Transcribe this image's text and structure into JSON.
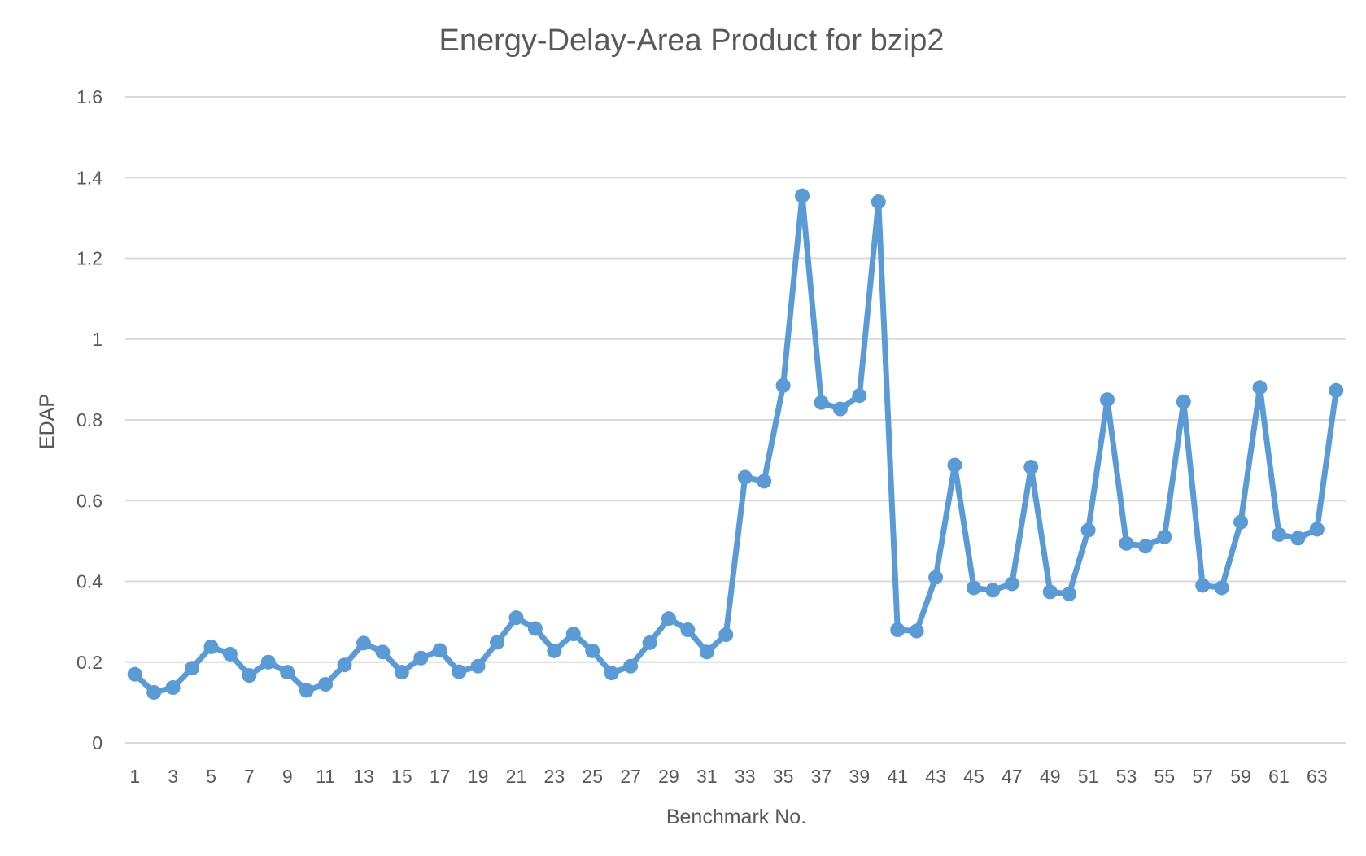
{
  "chart_data": {
    "type": "line",
    "title": "Energy-Delay-Area Product for bzip2",
    "xlabel": "Benchmark No.",
    "ylabel": "EDAP",
    "ylim": [
      0,
      1.6
    ],
    "y_ticks": [
      "0",
      "0.2",
      "0.4",
      "0.6",
      "0.8",
      "1",
      "1.2",
      "1.4",
      "1.6"
    ],
    "x_tick_labels": [
      "1",
      "3",
      "5",
      "7",
      "9",
      "11",
      "13",
      "15",
      "17",
      "19",
      "21",
      "23",
      "25",
      "27",
      "29",
      "31",
      "33",
      "35",
      "37",
      "39",
      "41",
      "43",
      "45",
      "47",
      "49",
      "51",
      "53",
      "55",
      "57",
      "59",
      "61",
      "63"
    ],
    "grid": true,
    "legend": "none",
    "color": "#5b9bd5",
    "series": [
      {
        "values": [
          0.17,
          0.125,
          0.137,
          0.185,
          0.238,
          0.22,
          0.167,
          0.2,
          0.175,
          0.13,
          0.145,
          0.193,
          0.247,
          0.225,
          0.175,
          0.21,
          0.229,
          0.176,
          0.19,
          0.249,
          0.31,
          0.283,
          0.228,
          0.27,
          0.228,
          0.173,
          0.19,
          0.248,
          0.308,
          0.28,
          0.225,
          0.268,
          0.658,
          0.648,
          0.885,
          1.355,
          0.843,
          0.827,
          0.86,
          1.34,
          0.28,
          0.277,
          0.41,
          0.688,
          0.384,
          0.378,
          0.394,
          0.683,
          0.374,
          0.369,
          0.527,
          0.85,
          0.494,
          0.487,
          0.51,
          0.845,
          0.39,
          0.384,
          0.547,
          0.88,
          0.516,
          0.507,
          0.529,
          0.873
        ]
      }
    ]
  }
}
